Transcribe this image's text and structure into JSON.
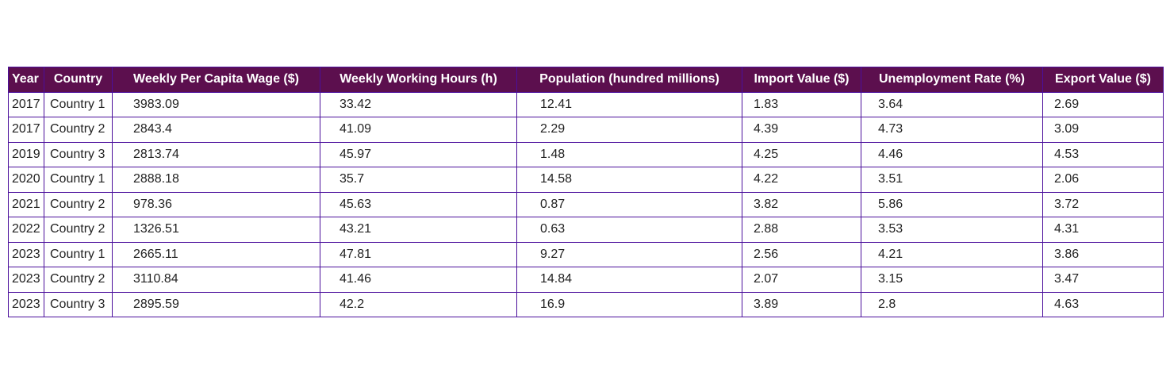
{
  "chart_data": {
    "type": "table",
    "columns": [
      "Year",
      "Country",
      "Weekly Per Capita Wage ($)",
      "Weekly Working Hours (h)",
      "Population (hundred millions)",
      "Import Value ($)",
      "Unemployment Rate (%)",
      "Export Value ($)"
    ],
    "rows": [
      [
        "2017",
        "Country 1",
        "3983.09",
        "33.42",
        "12.41",
        "1.83",
        "3.64",
        "2.69"
      ],
      [
        "2017",
        "Country 2",
        "2843.4",
        "41.09",
        "2.29",
        "4.39",
        "4.73",
        "3.09"
      ],
      [
        "2019",
        "Country 3",
        "2813.74",
        "45.97",
        "1.48",
        "4.25",
        "4.46",
        "4.53"
      ],
      [
        "2020",
        "Country 1",
        "2888.18",
        "35.7",
        "14.58",
        "4.22",
        "3.51",
        "2.06"
      ],
      [
        "2021",
        "Country 2",
        "978.36",
        "45.63",
        "0.87",
        "3.82",
        "5.86",
        "3.72"
      ],
      [
        "2022",
        "Country 2",
        "1326.51",
        "43.21",
        "0.63",
        "2.88",
        "3.53",
        "4.31"
      ],
      [
        "2023",
        "Country 1",
        "2665.11",
        "47.81",
        "9.27",
        "2.56",
        "4.21",
        "3.86"
      ],
      [
        "2023",
        "Country 2",
        "3110.84",
        "41.46",
        "14.84",
        "2.07",
        "3.15",
        "3.47"
      ],
      [
        "2023",
        "Country 3",
        "2895.59",
        "42.2",
        "16.9",
        "3.89",
        "2.8",
        "4.63"
      ]
    ],
    "colors": {
      "header_background": "#5c0f4e",
      "header_text": "#ffffff",
      "border": "#4b0f9c",
      "cell_text": "#222222"
    }
  }
}
